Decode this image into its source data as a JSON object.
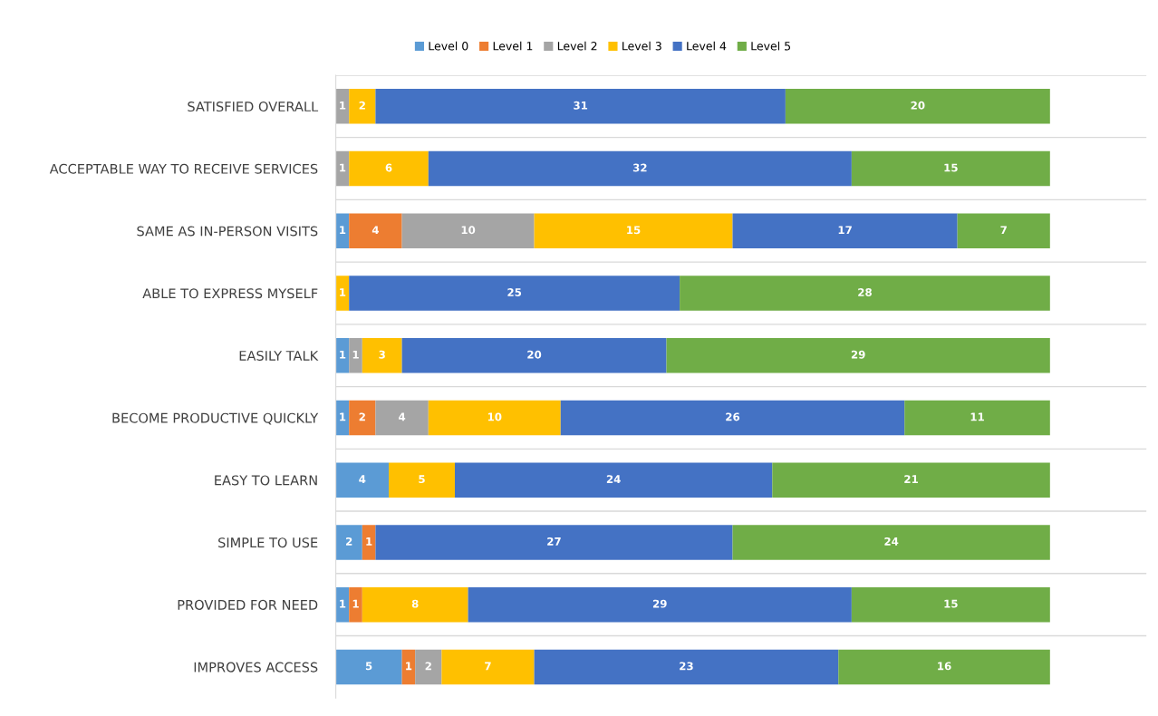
{
  "chart_data": {
    "type": "bar",
    "orientation": "horizontal",
    "stacked": true,
    "data_labels": true,
    "legend": "top",
    "grid": "y",
    "categories": [
      "SATISFIED OVERALL",
      "ACCEPTABLE WAY TO RECEIVE SERVICES",
      "SAME AS IN-PERSON VISITS",
      "ABLE TO EXPRESS MYSELF",
      "EASILY TALK",
      "BECOME PRODUCTIVE QUICKLY",
      "EASY TO LEARN",
      "SIMPLE TO USE",
      "PROVIDED FOR NEED",
      "IMPROVES ACCESS"
    ],
    "series": [
      {
        "name": "Level 0",
        "color": "#5b9bd5",
        "values": [
          null,
          null,
          1,
          null,
          1,
          1,
          4,
          2,
          1,
          5
        ]
      },
      {
        "name": "Level 1",
        "color": "#ed7d31",
        "values": [
          null,
          null,
          4,
          null,
          null,
          2,
          null,
          1,
          1,
          1
        ]
      },
      {
        "name": "Level 2",
        "color": "#a5a5a5",
        "values": [
          1,
          1,
          10,
          null,
          1,
          4,
          null,
          null,
          null,
          2
        ]
      },
      {
        "name": "Level 3",
        "color": "#ffc000",
        "values": [
          2,
          6,
          15,
          1,
          3,
          10,
          5,
          null,
          8,
          7
        ]
      },
      {
        "name": "Level 4",
        "color": "#4472c4",
        "values": [
          31,
          32,
          17,
          25,
          20,
          26,
          24,
          27,
          29,
          23
        ]
      },
      {
        "name": "Level 5",
        "color": "#70ad47",
        "values": [
          20,
          15,
          7,
          28,
          29,
          11,
          21,
          24,
          15,
          16
        ]
      }
    ]
  }
}
